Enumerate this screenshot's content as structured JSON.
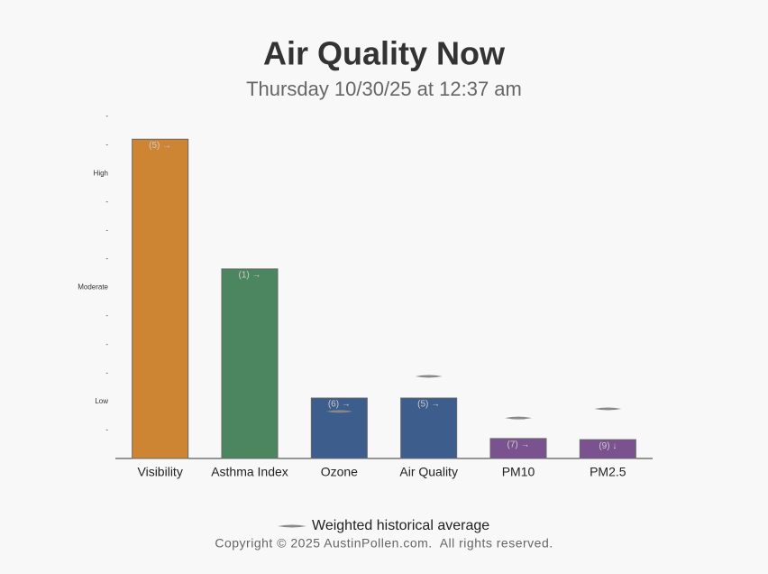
{
  "chart_data": {
    "type": "bar",
    "title": "Air Quality Now",
    "subtitle": "Thursday 10/30/25 at 12:37 am",
    "categories": [
      "Visibility",
      "Asthma Index",
      "Ozone",
      "Air Quality",
      "PM10",
      "PM2.5"
    ],
    "values": [
      11.2,
      6.65,
      2.12,
      2.12,
      0.7,
      0.66
    ],
    "bar_labels": [
      "(5) →",
      "(1) →",
      "(6) →",
      "(5) →",
      "(7) →",
      "(9) ↓"
    ],
    "colors": [
      "#cd8534",
      "#4c8660",
      "#3d5d8c",
      "#3d5d8c",
      "#7b5290",
      "#7b5290"
    ],
    "average": {
      "name": "Weighted historical average",
      "color": "#888888",
      "values": [
        null,
        null,
        1.65,
        2.88,
        1.42,
        1.74
      ]
    },
    "ylim": [
      0,
      12
    ],
    "yticks": [
      {
        "value": 1,
        "label": "-"
      },
      {
        "value": 2,
        "label": "Low"
      },
      {
        "value": 3,
        "label": "-"
      },
      {
        "value": 4,
        "label": "-"
      },
      {
        "value": 5,
        "label": "-"
      },
      {
        "value": 6,
        "label": "Moderate"
      },
      {
        "value": 7,
        "label": "-"
      },
      {
        "value": 8,
        "label": "-"
      },
      {
        "value": 9,
        "label": "-"
      },
      {
        "value": 10,
        "label": "High"
      },
      {
        "value": 11,
        "label": "-"
      },
      {
        "value": 12,
        "label": "-"
      }
    ],
    "footer": "Copyright © 2025 AustinPollen.com.  All rights reserved."
  }
}
